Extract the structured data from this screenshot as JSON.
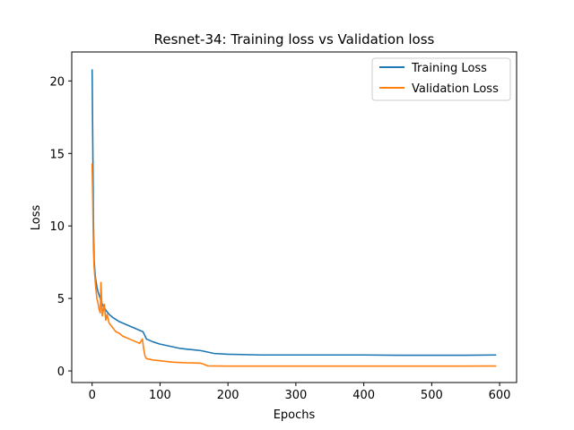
{
  "chart_data": {
    "type": "line",
    "title": "Resnet-34: Training loss vs Validation loss",
    "xlabel": "Epochs",
    "ylabel": "Loss",
    "xlim": [
      -30,
      625
    ],
    "ylim": [
      -0.8,
      22
    ],
    "xticks": [
      0,
      100,
      200,
      300,
      400,
      500,
      600
    ],
    "yticks": [
      0,
      5,
      10,
      15,
      20
    ],
    "legend_position": "top-right",
    "grid": false,
    "colors": {
      "training": "#1f77b4",
      "validation": "#ff7f0e"
    },
    "series": [
      {
        "name": "Training Loss",
        "color": "#1f77b4",
        "x": [
          0,
          1,
          2,
          3,
          4,
          5,
          7,
          9,
          12,
          15,
          20,
          25,
          30,
          40,
          50,
          60,
          70,
          75,
          78,
          80,
          90,
          100,
          110,
          120,
          130,
          140,
          150,
          160,
          170,
          180,
          200,
          250,
          300,
          350,
          400,
          450,
          500,
          550,
          595
        ],
        "values": [
          20.8,
          15.5,
          10.0,
          7.6,
          6.9,
          6.4,
          5.8,
          5.4,
          5.0,
          4.6,
          4.2,
          3.9,
          3.7,
          3.4,
          3.2,
          3.0,
          2.8,
          2.7,
          2.4,
          2.2,
          2.0,
          1.85,
          1.75,
          1.65,
          1.55,
          1.5,
          1.45,
          1.4,
          1.3,
          1.2,
          1.15,
          1.1,
          1.1,
          1.1,
          1.1,
          1.08,
          1.08,
          1.08,
          1.1
        ]
      },
      {
        "name": "Validation Loss",
        "color": "#ff7f0e",
        "x": [
          0,
          1,
          2,
          3,
          4,
          5,
          7,
          9,
          10,
          12,
          13,
          15,
          18,
          20,
          22,
          25,
          30,
          35,
          40,
          45,
          50,
          55,
          60,
          65,
          70,
          74,
          76,
          78,
          80,
          90,
          100,
          110,
          120,
          130,
          140,
          150,
          160,
          165,
          170,
          200,
          300,
          400,
          500,
          595
        ],
        "values": [
          14.3,
          11.5,
          8.3,
          7.1,
          6.5,
          5.9,
          5.0,
          4.6,
          4.3,
          4.0,
          6.1,
          3.8,
          4.6,
          3.5,
          3.9,
          3.3,
          3.0,
          2.7,
          2.6,
          2.4,
          2.3,
          2.2,
          2.1,
          2.0,
          1.9,
          2.2,
          1.5,
          1.0,
          0.85,
          0.75,
          0.7,
          0.65,
          0.6,
          0.58,
          0.56,
          0.55,
          0.53,
          0.45,
          0.35,
          0.33,
          0.33,
          0.33,
          0.33,
          0.34
        ]
      }
    ]
  }
}
